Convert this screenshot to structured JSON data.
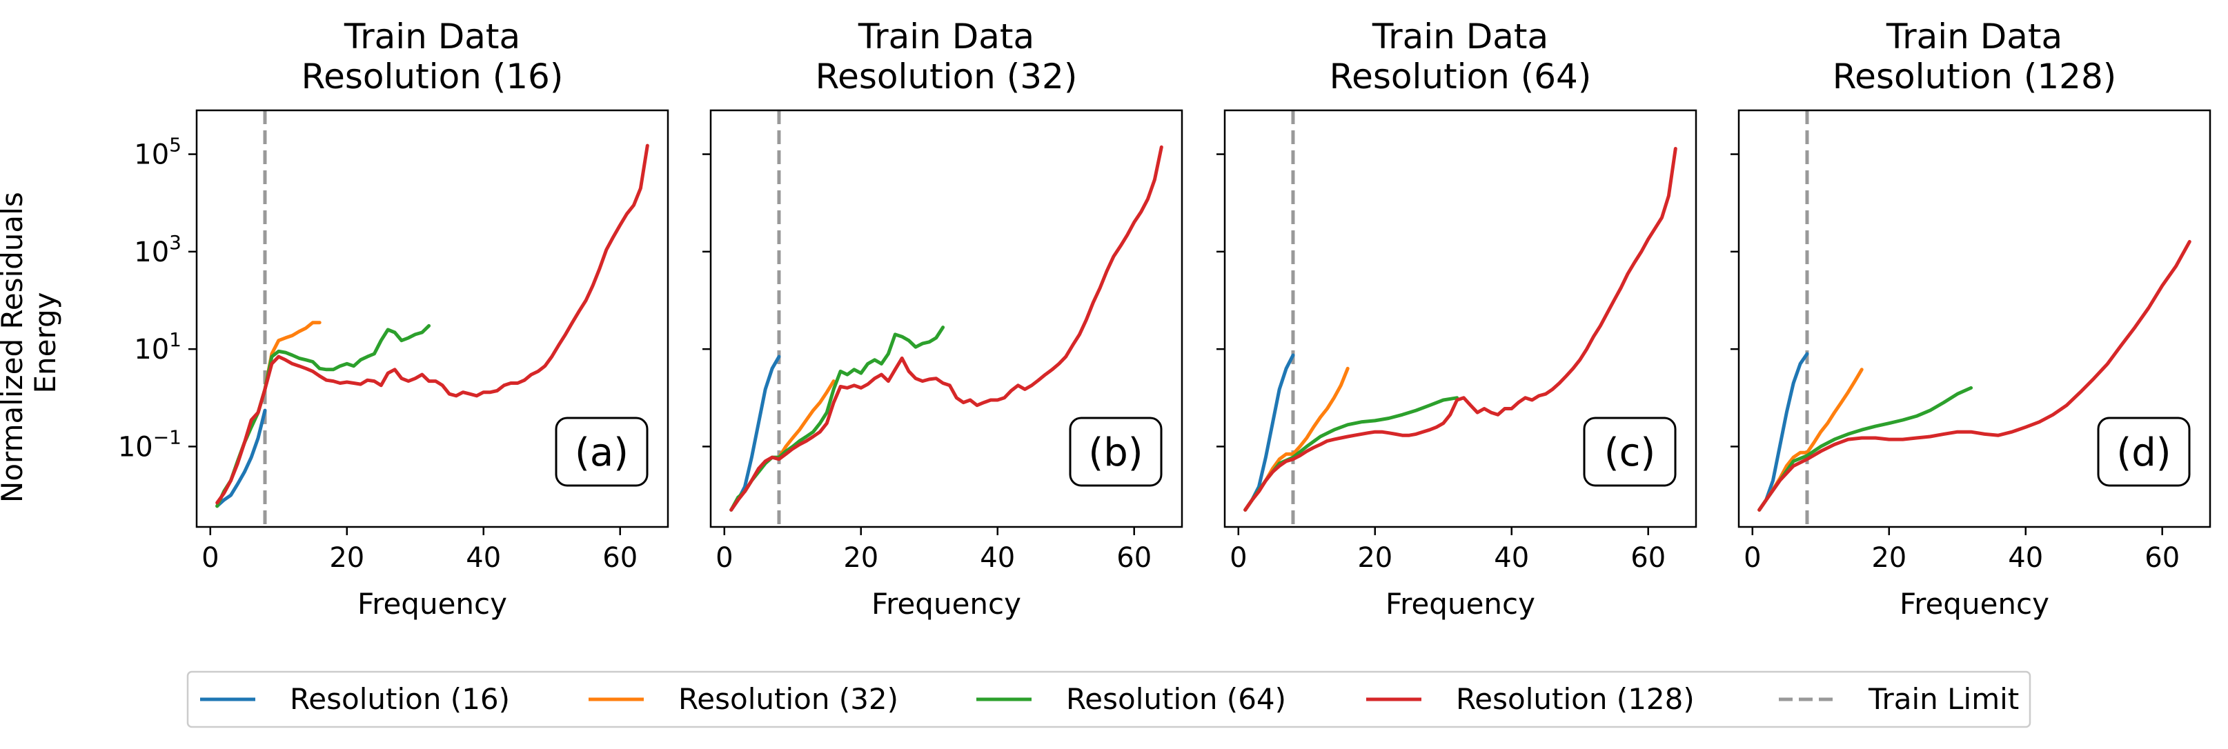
{
  "figure": {
    "ylabel_line1": "Normalized Residuals",
    "ylabel_line2": "Energy"
  },
  "colors": {
    "res16": "#1f77b4",
    "res32": "#ff7f0e",
    "res64": "#2ca02c",
    "res128": "#d62728",
    "train_limit": "#999999"
  },
  "legend": {
    "placement": "bottom-center",
    "entries": [
      {
        "key": "res16",
        "label": "Resolution (16)",
        "style": "solid"
      },
      {
        "key": "res32",
        "label": "Resolution (32)",
        "style": "solid"
      },
      {
        "key": "res64",
        "label": "Resolution (64)",
        "style": "solid"
      },
      {
        "key": "res128",
        "label": "Resolution (128)",
        "style": "solid"
      },
      {
        "key": "train_limit",
        "label": "Train Limit",
        "style": "dashed"
      }
    ]
  },
  "chart_data": [
    {
      "type": "line",
      "title_line1": "Train Data",
      "title_line2": "Resolution (16)",
      "panel_label": "(a)",
      "xlabel": "Frequency",
      "xlim": [
        -2,
        67
      ],
      "xticks": [
        0,
        20,
        40,
        60
      ],
      "ylim_log10": [
        -2.65,
        5.9
      ],
      "yscale": "log",
      "yticks": [
        {
          "exp": -1,
          "label": "10",
          "sup": "−1"
        },
        {
          "exp": 1,
          "label": "10",
          "sup": "1"
        },
        {
          "exp": 3,
          "label": "10",
          "sup": "3"
        },
        {
          "exp": 5,
          "label": "10",
          "sup": "5"
        }
      ],
      "train_limit": 8,
      "series": [
        {
          "name": "Resolution (16)",
          "key": "res16",
          "x": [
            1,
            2,
            3,
            4,
            5,
            6,
            7,
            8
          ],
          "y": [
            0.006,
            0.008,
            0.01,
            0.017,
            0.03,
            0.06,
            0.15,
            0.55
          ]
        },
        {
          "name": "Resolution (32)",
          "key": "res32",
          "x": [
            1,
            2,
            3,
            4,
            5,
            6,
            7,
            8,
            9,
            10,
            11,
            12,
            13,
            14,
            15,
            16
          ],
          "y": [
            0.006,
            0.012,
            0.02,
            0.05,
            0.12,
            0.25,
            0.5,
            1.5,
            8,
            15,
            17,
            19,
            23,
            27,
            35,
            35
          ]
        },
        {
          "name": "Resolution (64)",
          "key": "res64",
          "x": [
            1,
            2,
            3,
            4,
            5,
            6,
            7,
            8,
            9,
            10,
            11,
            12,
            13,
            14,
            15,
            16,
            17,
            18,
            19,
            20,
            21,
            22,
            23,
            24,
            25,
            26,
            27,
            28,
            29,
            30,
            31,
            32
          ],
          "y": [
            0.006,
            0.012,
            0.02,
            0.05,
            0.12,
            0.25,
            0.5,
            1.5,
            7,
            9,
            8.5,
            7.5,
            6.5,
            6,
            5.5,
            4,
            3.8,
            3.8,
            4.5,
            5,
            4.5,
            6,
            7,
            8,
            15,
            25,
            22,
            15,
            17,
            20,
            22,
            30
          ]
        },
        {
          "name": "Resolution (128)",
          "key": "res128",
          "x": [
            1,
            2,
            3,
            4,
            5,
            6,
            7,
            8,
            9,
            10,
            11,
            12,
            13,
            14,
            15,
            16,
            17,
            18,
            19,
            20,
            21,
            22,
            23,
            24,
            25,
            26,
            27,
            28,
            29,
            30,
            31,
            32,
            33,
            34,
            35,
            36,
            37,
            38,
            39,
            40,
            41,
            42,
            43,
            44,
            45,
            46,
            47,
            48,
            49,
            50,
            51,
            52,
            53,
            54,
            55,
            56,
            57,
            58,
            59,
            60,
            61,
            62,
            63,
            64
          ],
          "y": [
            0.007,
            0.011,
            0.02,
            0.045,
            0.12,
            0.35,
            0.5,
            1.5,
            5,
            7,
            6,
            5,
            4.5,
            4,
            3.5,
            2.8,
            2.3,
            2.2,
            2.0,
            2.1,
            2.0,
            1.9,
            2.3,
            2.2,
            1.8,
            3.2,
            3.8,
            2.5,
            2.2,
            2.5,
            3.0,
            2.2,
            2.2,
            1.8,
            1.2,
            1.1,
            1.3,
            1.2,
            1.1,
            1.3,
            1.3,
            1.4,
            1.8,
            2.0,
            2.0,
            2.3,
            3.0,
            3.5,
            4.5,
            7,
            12,
            20,
            35,
            60,
            100,
            200,
            450,
            1100,
            2000,
            3500,
            6000,
            9000,
            20000,
            150000
          ]
        }
      ]
    },
    {
      "type": "line",
      "title_line1": "Train Data",
      "title_line2": "Resolution (32)",
      "panel_label": "(b)",
      "xlabel": "Frequency",
      "xlim": [
        -2,
        67
      ],
      "xticks": [
        0,
        20,
        40,
        60
      ],
      "ylim_log10": [
        -2.65,
        5.9
      ],
      "yscale": "log",
      "train_limit": 8,
      "series": [
        {
          "name": "Resolution (16)",
          "key": "res16",
          "x": [
            1,
            2,
            3,
            4,
            5,
            6,
            7,
            8
          ],
          "y": [
            0.005,
            0.008,
            0.015,
            0.06,
            0.3,
            1.5,
            4,
            7
          ]
        },
        {
          "name": "Resolution (32)",
          "key": "res32",
          "x": [
            8,
            9,
            10,
            11,
            12,
            13,
            14,
            15,
            16
          ],
          "y": [
            0.06,
            0.1,
            0.15,
            0.22,
            0.35,
            0.55,
            0.8,
            1.3,
            2.2
          ]
        },
        {
          "name": "Resolution (64)",
          "key": "res64",
          "x": [
            1,
            2,
            3,
            4,
            5,
            6,
            7,
            8,
            9,
            10,
            11,
            12,
            13,
            14,
            15,
            16,
            17,
            18,
            19,
            20,
            21,
            22,
            23,
            24,
            25,
            26,
            27,
            28,
            29,
            30,
            31,
            32
          ],
          "y": [
            0.005,
            0.009,
            0.012,
            0.02,
            0.03,
            0.045,
            0.06,
            0.06,
            0.08,
            0.1,
            0.13,
            0.16,
            0.2,
            0.3,
            0.5,
            1.5,
            3.5,
            3.0,
            3.8,
            3.2,
            5,
            6,
            5,
            8,
            20,
            18,
            15,
            11,
            13,
            14,
            17,
            28
          ]
        },
        {
          "name": "Resolution (128)",
          "key": "res128",
          "x": [
            1,
            2,
            3,
            4,
            5,
            6,
            7,
            8,
            9,
            10,
            11,
            12,
            13,
            14,
            15,
            16,
            17,
            18,
            19,
            20,
            21,
            22,
            23,
            24,
            25,
            26,
            27,
            28,
            29,
            30,
            31,
            32,
            33,
            34,
            35,
            36,
            37,
            38,
            39,
            40,
            41,
            42,
            43,
            44,
            45,
            46,
            47,
            48,
            49,
            50,
            51,
            52,
            53,
            54,
            55,
            56,
            57,
            58,
            59,
            60,
            61,
            62,
            63,
            64
          ],
          "y": [
            0.005,
            0.008,
            0.012,
            0.02,
            0.035,
            0.05,
            0.06,
            0.055,
            0.07,
            0.09,
            0.11,
            0.13,
            0.16,
            0.2,
            0.3,
            0.8,
            1.7,
            1.6,
            1.8,
            1.6,
            1.9,
            2.5,
            3.0,
            2.2,
            3.8,
            6.5,
            3.5,
            2.5,
            2.2,
            2.4,
            2.5,
            2.0,
            1.8,
            1.0,
            0.8,
            0.9,
            0.7,
            0.8,
            0.9,
            0.9,
            1.0,
            1.4,
            1.8,
            1.5,
            1.8,
            2.3,
            3.0,
            3.8,
            5,
            7,
            12,
            20,
            40,
            90,
            180,
            400,
            800,
            1300,
            2200,
            4000,
            6500,
            12000,
            30000,
            140000
          ]
        }
      ]
    },
    {
      "type": "line",
      "title_line1": "Train Data",
      "title_line2": "Resolution (64)",
      "panel_label": "(c)",
      "xlabel": "Frequency",
      "xlim": [
        -2,
        67
      ],
      "xticks": [
        0,
        20,
        40,
        60
      ],
      "ylim_log10": [
        -2.65,
        5.9
      ],
      "yscale": "log",
      "train_limit": 8,
      "series": [
        {
          "name": "Resolution (16)",
          "key": "res16",
          "x": [
            1,
            2,
            3,
            4,
            5,
            6,
            7,
            8
          ],
          "y": [
            0.005,
            0.008,
            0.015,
            0.06,
            0.3,
            1.5,
            4,
            7.5
          ]
        },
        {
          "name": "Resolution (32)",
          "key": "res32",
          "x": [
            1,
            2,
            3,
            4,
            5,
            6,
            7,
            8,
            9,
            10,
            11,
            12,
            13,
            14,
            15,
            16
          ],
          "y": [
            0.005,
            0.008,
            0.012,
            0.02,
            0.035,
            0.055,
            0.07,
            0.07,
            0.1,
            0.15,
            0.25,
            0.4,
            0.6,
            1.0,
            1.8,
            4
          ]
        },
        {
          "name": "Resolution (64)",
          "key": "res64",
          "x": [
            1,
            2,
            4,
            6,
            8,
            10,
            12,
            14,
            16,
            18,
            20,
            22,
            24,
            26,
            28,
            30,
            32
          ],
          "y": [
            0.005,
            0.008,
            0.02,
            0.045,
            0.06,
            0.1,
            0.16,
            0.22,
            0.28,
            0.32,
            0.34,
            0.38,
            0.45,
            0.55,
            0.7,
            0.9,
            1.0
          ]
        },
        {
          "name": "Resolution (128)",
          "key": "res128",
          "x": [
            1,
            2,
            3,
            4,
            5,
            6,
            7,
            8,
            9,
            10,
            11,
            12,
            13,
            14,
            15,
            16,
            17,
            18,
            19,
            20,
            21,
            22,
            23,
            24,
            25,
            26,
            27,
            28,
            29,
            30,
            31,
            32,
            33,
            34,
            35,
            36,
            37,
            38,
            39,
            40,
            41,
            42,
            43,
            44,
            45,
            46,
            47,
            48,
            49,
            50,
            51,
            52,
            53,
            54,
            55,
            56,
            57,
            58,
            59,
            60,
            61,
            62,
            63,
            64
          ],
          "y": [
            0.005,
            0.008,
            0.012,
            0.02,
            0.03,
            0.04,
            0.05,
            0.055,
            0.065,
            0.08,
            0.095,
            0.11,
            0.13,
            0.14,
            0.15,
            0.16,
            0.17,
            0.18,
            0.19,
            0.2,
            0.2,
            0.19,
            0.18,
            0.17,
            0.17,
            0.18,
            0.2,
            0.22,
            0.25,
            0.3,
            0.45,
            0.9,
            1.0,
            0.7,
            0.5,
            0.6,
            0.5,
            0.45,
            0.6,
            0.6,
            0.8,
            1.0,
            0.9,
            1.1,
            1.2,
            1.5,
            2.0,
            2.8,
            4,
            6,
            10,
            18,
            30,
            55,
            100,
            180,
            350,
            600,
            1000,
            1800,
            3000,
            5000,
            14000,
            130000
          ]
        }
      ]
    },
    {
      "type": "line",
      "title_line1": "Train Data",
      "title_line2": "Resolution (128)",
      "panel_label": "(d)",
      "xlabel": "Frequency",
      "xlim": [
        -2,
        67
      ],
      "xticks": [
        0,
        20,
        40,
        60
      ],
      "ylim_log10": [
        -2.65,
        5.9
      ],
      "yscale": "log",
      "train_limit": 8,
      "series": [
        {
          "name": "Resolution (16)",
          "key": "res16",
          "x": [
            1,
            2,
            3,
            4,
            5,
            6,
            7,
            8
          ],
          "y": [
            0.005,
            0.008,
            0.02,
            0.1,
            0.5,
            2,
            5,
            8
          ]
        },
        {
          "name": "Resolution (32)",
          "key": "res32",
          "x": [
            1,
            2,
            3,
            4,
            5,
            6,
            7,
            8,
            9,
            10,
            11,
            12,
            13,
            14,
            15,
            16
          ],
          "y": [
            0.005,
            0.008,
            0.013,
            0.022,
            0.04,
            0.06,
            0.075,
            0.075,
            0.12,
            0.2,
            0.3,
            0.5,
            0.8,
            1.3,
            2.2,
            3.8
          ]
        },
        {
          "name": "Resolution (64)",
          "key": "res64",
          "x": [
            1,
            2,
            4,
            6,
            8,
            10,
            12,
            14,
            16,
            18,
            20,
            22,
            24,
            26,
            28,
            30,
            32
          ],
          "y": [
            0.005,
            0.008,
            0.02,
            0.05,
            0.065,
            0.1,
            0.14,
            0.18,
            0.22,
            0.26,
            0.3,
            0.35,
            0.42,
            0.55,
            0.8,
            1.2,
            1.6
          ]
        },
        {
          "name": "Resolution (128)",
          "key": "res128",
          "x": [
            1,
            2,
            4,
            6,
            8,
            10,
            12,
            14,
            16,
            18,
            20,
            22,
            24,
            26,
            28,
            30,
            32,
            34,
            36,
            38,
            40,
            42,
            44,
            46,
            48,
            50,
            52,
            54,
            56,
            58,
            60,
            62,
            64
          ],
          "y": [
            0.005,
            0.008,
            0.02,
            0.04,
            0.055,
            0.08,
            0.11,
            0.14,
            0.15,
            0.15,
            0.14,
            0.14,
            0.15,
            0.16,
            0.18,
            0.2,
            0.2,
            0.18,
            0.17,
            0.2,
            0.25,
            0.32,
            0.45,
            0.7,
            1.3,
            2.5,
            5,
            12,
            28,
            70,
            200,
            500,
            1600
          ]
        }
      ]
    }
  ]
}
